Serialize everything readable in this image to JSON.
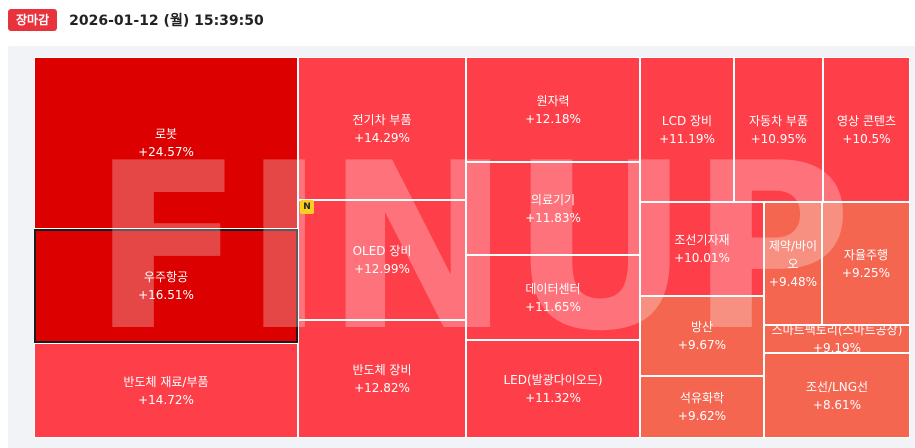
{
  "header": {
    "badge": "장마감",
    "datetime": "2026-01-12 (월) 15:39:50"
  },
  "watermark": "FINUP",
  "new_badge": "N",
  "colors": {
    "badge_red": "#e8323c",
    "top_red": "#dc0000",
    "mid_red": "#fe3e49",
    "soft_red": "#f56651"
  },
  "chart_data": {
    "type": "treemap",
    "title": "",
    "unit": "%",
    "items": [
      {
        "name": "로봇",
        "change": "+24.57%",
        "value": 24.57
      },
      {
        "name": "우주항공",
        "change": "+16.51%",
        "value": 16.51,
        "selected": true
      },
      {
        "name": "반도체 재료/부품",
        "change": "+14.72%",
        "value": 14.72
      },
      {
        "name": "전기차 부품",
        "change": "+14.29%",
        "value": 14.29
      },
      {
        "name": "OLED 장비",
        "change": "+12.99%",
        "value": 12.99,
        "new": true
      },
      {
        "name": "반도체 장비",
        "change": "+12.82%",
        "value": 12.82
      },
      {
        "name": "원자력",
        "change": "+12.18%",
        "value": 12.18
      },
      {
        "name": "의료기기",
        "change": "+11.83%",
        "value": 11.83
      },
      {
        "name": "데이터센터",
        "change": "+11.65%",
        "value": 11.65
      },
      {
        "name": "LED(발광다이오드)",
        "change": "+11.32%",
        "value": 11.32
      },
      {
        "name": "LCD 장비",
        "change": "+11.19%",
        "value": 11.19
      },
      {
        "name": "자동차 부품",
        "change": "+10.95%",
        "value": 10.95
      },
      {
        "name": "영상 콘텐츠",
        "change": "+10.5%",
        "value": 10.5
      },
      {
        "name": "조선기자재",
        "change": "+10.01%",
        "value": 10.01
      },
      {
        "name": "제약/바이오",
        "change": "+9.48%",
        "value": 9.48
      },
      {
        "name": "자율주행",
        "change": "+9.25%",
        "value": 9.25
      },
      {
        "name": "방산",
        "change": "+9.67%",
        "value": 9.67
      },
      {
        "name": "스마트팩토리(스마트공장)",
        "change": "+9.19%",
        "value": 9.19
      },
      {
        "name": "석유화학",
        "change": "+9.62%",
        "value": 9.62
      },
      {
        "name": "조선/LNG선",
        "change": "+8.61%",
        "value": 8.61
      }
    ]
  }
}
